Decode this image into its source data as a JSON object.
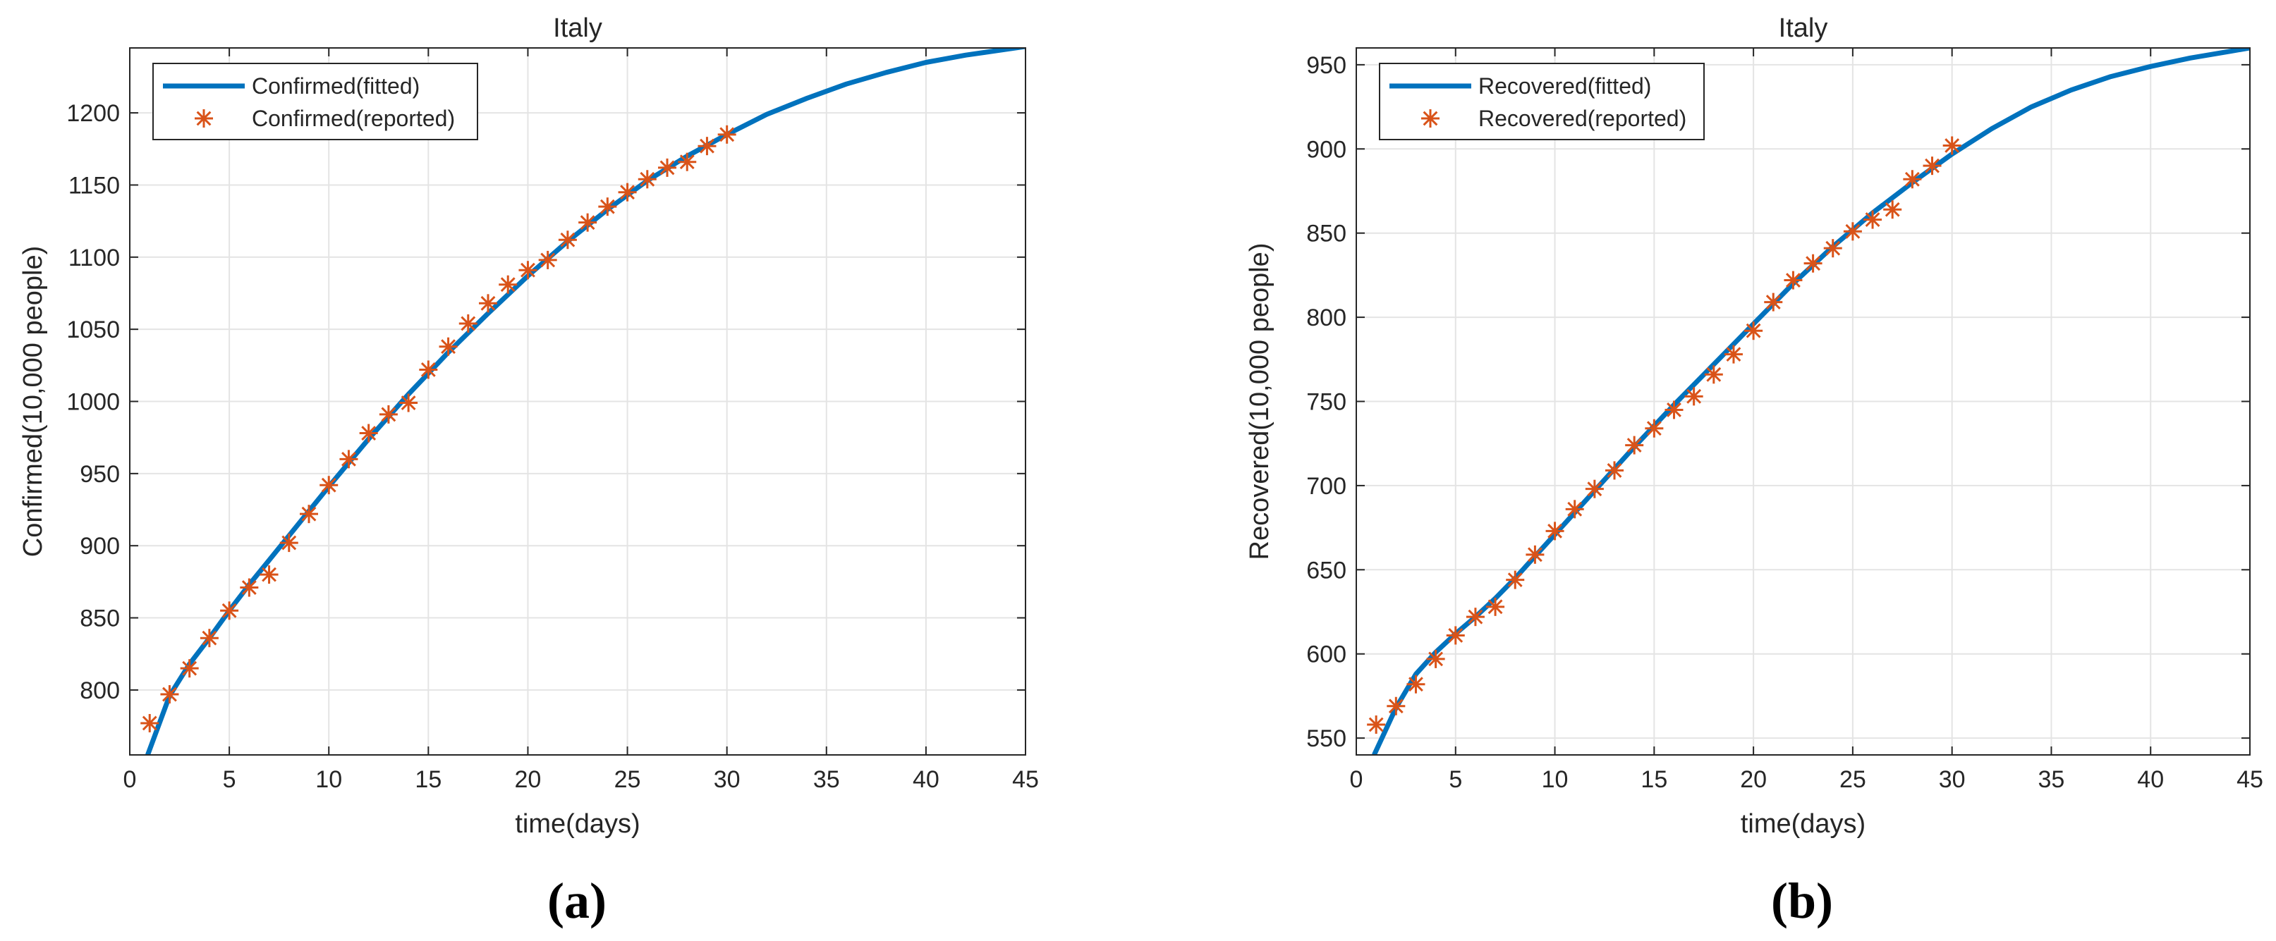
{
  "chart_data": [
    {
      "type": "line",
      "title": "Italy",
      "xlabel": "time(days)",
      "ylabel": "Confirmed(10,000 people)",
      "xlim": [
        0,
        45
      ],
      "ylim": [
        755,
        1245
      ],
      "xticks": [
        0,
        5,
        10,
        15,
        20,
        25,
        30,
        35,
        40,
        45
      ],
      "yticks": [
        800,
        850,
        900,
        950,
        1000,
        1050,
        1100,
        1150,
        1200
      ],
      "grid": true,
      "legend_position": "top-left",
      "caption": "(a)",
      "series": [
        {
          "name": "Confirmed(fitted)",
          "style": "line",
          "color": "#0072BD",
          "x": [
            0.9,
            2,
            3,
            4,
            5,
            6,
            7,
            8,
            9,
            10,
            12,
            14,
            16,
            18,
            20,
            22,
            24,
            26,
            28,
            30,
            32,
            34,
            36,
            38,
            40,
            42,
            44,
            45
          ],
          "y": [
            755,
            796,
            818,
            836,
            855,
            873,
            890,
            907,
            924,
            941,
            974,
            1005,
            1034,
            1061,
            1087,
            1111,
            1133,
            1153,
            1170,
            1185,
            1199,
            1210,
            1220,
            1228,
            1235,
            1240,
            1244,
            1246
          ]
        },
        {
          "name": "Confirmed(reported)",
          "style": "marker",
          "color": "#D95319",
          "x": [
            1,
            2,
            3,
            4,
            5,
            6,
            7,
            8,
            9,
            10,
            11,
            12,
            13,
            14,
            15,
            16,
            17,
            18,
            19,
            20,
            21,
            22,
            23,
            24,
            25,
            26,
            27,
            28,
            29,
            30
          ],
          "y": [
            777,
            797,
            815,
            836,
            855,
            871,
            880,
            902,
            922,
            942,
            960,
            978,
            991,
            999,
            1022,
            1038,
            1054,
            1068,
            1081,
            1091,
            1098,
            1112,
            1124,
            1135,
            1145,
            1154,
            1162,
            1166,
            1177,
            1185
          ]
        }
      ]
    },
    {
      "type": "line",
      "title": "Italy",
      "xlabel": "time(days)",
      "ylabel": "Recovered(10,000 people)",
      "xlim": [
        0,
        45
      ],
      "ylim": [
        540,
        960
      ],
      "xticks": [
        0,
        5,
        10,
        15,
        20,
        25,
        30,
        35,
        40,
        45
      ],
      "yticks": [
        550,
        600,
        650,
        700,
        750,
        800,
        850,
        900,
        950
      ],
      "grid": true,
      "legend_position": "top-left",
      "caption": "(b)",
      "series": [
        {
          "name": "Recovered(fitted)",
          "style": "line",
          "color": "#0072BD",
          "x": [
            0.9,
            2,
            3,
            4,
            5,
            6,
            7,
            8,
            9,
            10,
            12,
            14,
            16,
            18,
            20,
            22,
            24,
            26,
            28,
            30,
            32,
            34,
            36,
            38,
            40,
            42,
            44,
            45
          ],
          "y": [
            540,
            568,
            588,
            601,
            612,
            622,
            633,
            645,
            658,
            671,
            697,
            723,
            748,
            772,
            796,
            820,
            842,
            862,
            880,
            897,
            912,
            925,
            935,
            943,
            949,
            954,
            958,
            960
          ]
        },
        {
          "name": "Recovered(reported)",
          "style": "marker",
          "color": "#D95319",
          "x": [
            1,
            2,
            3,
            4,
            5,
            6,
            7,
            8,
            9,
            10,
            11,
            12,
            13,
            14,
            15,
            16,
            17,
            18,
            19,
            20,
            21,
            22,
            23,
            24,
            25,
            26,
            27,
            28,
            29,
            30
          ],
          "y": [
            558,
            569,
            582,
            597,
            611,
            622,
            628,
            644,
            659,
            673,
            686,
            698,
            709,
            724,
            734,
            745,
            753,
            766,
            778,
            792,
            809,
            822,
            832,
            841,
            851,
            858,
            864,
            882,
            890,
            902
          ]
        }
      ]
    }
  ]
}
